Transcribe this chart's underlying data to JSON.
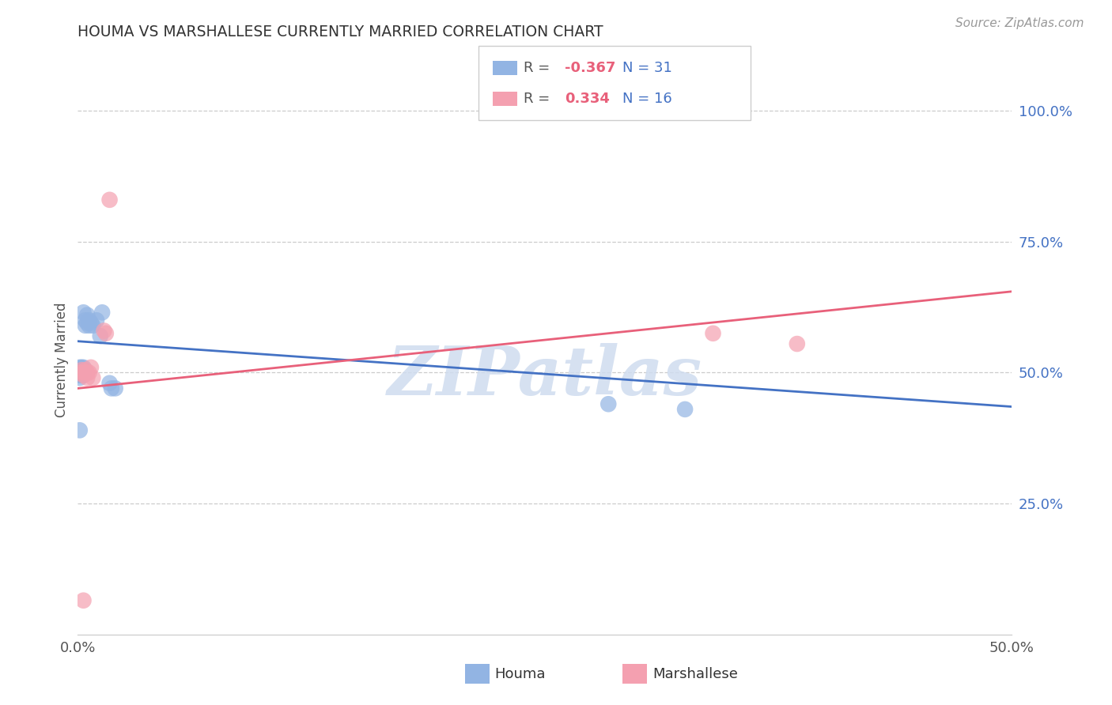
{
  "title": "HOUMA VS MARSHALLESE CURRENTLY MARRIED CORRELATION CHART",
  "source": "Source: ZipAtlas.com",
  "ylabel_label": "Currently Married",
  "xlim": [
    0.0,
    0.5
  ],
  "ylim": [
    0.0,
    1.05
  ],
  "ytick_positions": [
    0.25,
    0.5,
    0.75,
    1.0
  ],
  "legend_r_houma": "-0.367",
  "legend_n_houma": "31",
  "legend_r_marsh": "0.334",
  "legend_n_marsh": "16",
  "houma_color": "#92b4e3",
  "marsh_color": "#f4a0b0",
  "houma_line_color": "#4472c4",
  "marsh_line_color": "#e8607a",
  "watermark": "ZIPatlas",
  "houma_points": [
    [
      0.001,
      0.5
    ],
    [
      0.001,
      0.505
    ],
    [
      0.001,
      0.49
    ],
    [
      0.001,
      0.495
    ],
    [
      0.001,
      0.51
    ],
    [
      0.002,
      0.5
    ],
    [
      0.002,
      0.51
    ],
    [
      0.002,
      0.495
    ],
    [
      0.002,
      0.505
    ],
    [
      0.003,
      0.5
    ],
    [
      0.003,
      0.495
    ],
    [
      0.003,
      0.505
    ],
    [
      0.003,
      0.51
    ],
    [
      0.003,
      0.615
    ],
    [
      0.004,
      0.6
    ],
    [
      0.004,
      0.59
    ],
    [
      0.005,
      0.61
    ],
    [
      0.005,
      0.595
    ],
    [
      0.006,
      0.6
    ],
    [
      0.006,
      0.59
    ],
    [
      0.007,
      0.595
    ],
    [
      0.008,
      0.59
    ],
    [
      0.01,
      0.6
    ],
    [
      0.012,
      0.57
    ],
    [
      0.013,
      0.615
    ],
    [
      0.017,
      0.48
    ],
    [
      0.018,
      0.47
    ],
    [
      0.02,
      0.47
    ],
    [
      0.001,
      0.39
    ],
    [
      0.284,
      0.44
    ],
    [
      0.325,
      0.43
    ]
  ],
  "marsh_points": [
    [
      0.001,
      0.5
    ],
    [
      0.002,
      0.505
    ],
    [
      0.003,
      0.495
    ],
    [
      0.003,
      0.5
    ],
    [
      0.004,
      0.505
    ],
    [
      0.005,
      0.49
    ],
    [
      0.005,
      0.5
    ],
    [
      0.006,
      0.5
    ],
    [
      0.007,
      0.51
    ],
    [
      0.008,
      0.49
    ],
    [
      0.014,
      0.58
    ],
    [
      0.015,
      0.575
    ],
    [
      0.017,
      0.83
    ],
    [
      0.003,
      0.065
    ],
    [
      0.34,
      0.575
    ],
    [
      0.385,
      0.555
    ]
  ],
  "houma_trend_x": [
    0.0,
    0.5
  ],
  "houma_trend_y": [
    0.56,
    0.435
  ],
  "marsh_trend_x": [
    0.0,
    0.5
  ],
  "marsh_trend_y": [
    0.47,
    0.655
  ]
}
